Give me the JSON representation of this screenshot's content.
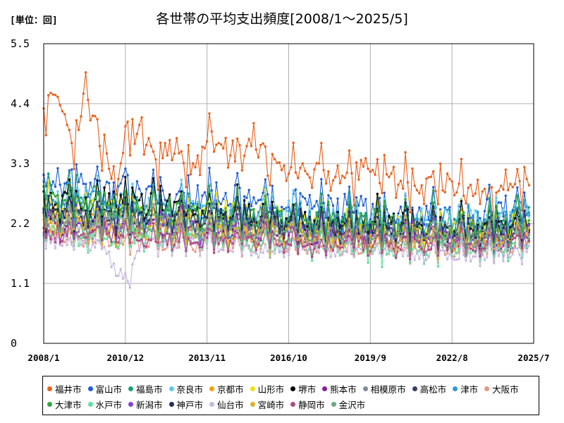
{
  "header": {
    "unit": "[単位：回]",
    "title": "各世帯の平均支出頻度[2008/1～2025/5]"
  },
  "chart_data": {
    "type": "line",
    "title": "各世帯の平均支出頻度[2008/1～2025/5]",
    "unit": "[単位：回]",
    "xlabel": "",
    "ylabel": "",
    "x_range": [
      "2008/1",
      "2025/7"
    ],
    "x_ticks": [
      "2008/1",
      "2010/12",
      "2013/11",
      "2016/10",
      "2019/9",
      "2022/8",
      "2025/7"
    ],
    "ylim": [
      0,
      5.5
    ],
    "y_ticks": [
      0,
      1.1,
      2.2,
      3.3,
      4.4,
      5.5
    ],
    "grid": true,
    "legend_position": "bottom",
    "series": [
      {
        "name": "福井市",
        "color": "#e8601c",
        "anchors": [
          [
            2008.0,
            4.1
          ],
          [
            2008.5,
            4.6
          ],
          [
            2009.0,
            3.4
          ],
          [
            2009.5,
            4.7
          ],
          [
            2010.0,
            3.6
          ],
          [
            2010.5,
            3.0
          ],
          [
            2011.0,
            3.7
          ],
          [
            2011.5,
            3.9
          ],
          [
            2012.0,
            3.2
          ],
          [
            2012.5,
            3.7
          ],
          [
            2013.0,
            3.3
          ],
          [
            2013.5,
            3.4
          ],
          [
            2014.0,
            3.7
          ],
          [
            2014.5,
            3.6
          ],
          [
            2015.0,
            3.3
          ],
          [
            2015.5,
            3.8
          ],
          [
            2016.0,
            3.1
          ],
          [
            2016.5,
            3.3
          ],
          [
            2017.0,
            3.1
          ],
          [
            2017.5,
            3.2
          ],
          [
            2018.0,
            3.0
          ],
          [
            2018.5,
            3.1
          ],
          [
            2019.0,
            2.9
          ],
          [
            2019.5,
            3.4
          ],
          [
            2020.0,
            3.0
          ],
          [
            2020.5,
            3.0
          ],
          [
            2021.0,
            2.9
          ],
          [
            2021.5,
            3.0
          ],
          [
            2022.0,
            2.8
          ],
          [
            2022.5,
            3.0
          ],
          [
            2023.0,
            2.7
          ],
          [
            2023.5,
            2.8
          ],
          [
            2024.0,
            2.6
          ],
          [
            2024.5,
            3.0
          ],
          [
            2025.0,
            2.8
          ],
          [
            2025.33,
            2.8
          ]
        ],
        "amp": 0.55,
        "noise": 0.25
      },
      {
        "name": "富山市",
        "color": "#1f5fd6",
        "anchors": [
          [
            2008.0,
            3.0
          ],
          [
            2009.0,
            2.9
          ],
          [
            2010.0,
            2.8
          ],
          [
            2011.0,
            2.8
          ],
          [
            2012.0,
            2.7
          ],
          [
            2013.0,
            2.7
          ],
          [
            2014.0,
            2.7
          ],
          [
            2015.0,
            2.6
          ],
          [
            2016.0,
            2.6
          ],
          [
            2017.0,
            2.5
          ],
          [
            2018.0,
            2.5
          ],
          [
            2019.0,
            2.5
          ],
          [
            2020.0,
            2.4
          ],
          [
            2021.0,
            2.4
          ],
          [
            2022.0,
            2.4
          ],
          [
            2023.0,
            2.3
          ],
          [
            2024.0,
            2.4
          ],
          [
            2025.33,
            2.5
          ]
        ],
        "amp": 0.55,
        "noise": 0.2
      },
      {
        "name": "福島市",
        "color": "#18a07a",
        "anchors": [
          [
            2008.0,
            2.8
          ],
          [
            2010.0,
            2.6
          ],
          [
            2012.0,
            2.4
          ],
          [
            2014.0,
            2.4
          ],
          [
            2016.0,
            2.3
          ],
          [
            2018.0,
            2.2
          ],
          [
            2020.0,
            2.2
          ],
          [
            2022.0,
            2.2
          ],
          [
            2024.0,
            2.1
          ],
          [
            2025.33,
            2.3
          ]
        ],
        "amp": 0.6,
        "noise": 0.18
      },
      {
        "name": "奈良市",
        "color": "#5ec8f2",
        "anchors": [
          [
            2008.0,
            2.7
          ],
          [
            2010.0,
            2.6
          ],
          [
            2012.0,
            2.5
          ],
          [
            2014.0,
            2.4
          ],
          [
            2016.0,
            2.5
          ],
          [
            2018.0,
            2.3
          ],
          [
            2020.0,
            2.3
          ],
          [
            2022.0,
            2.3
          ],
          [
            2024.0,
            2.3
          ],
          [
            2025.33,
            2.4
          ]
        ],
        "amp": 0.5,
        "noise": 0.2
      },
      {
        "name": "京都市",
        "color": "#f2a600",
        "anchors": [
          [
            2008.0,
            2.3
          ],
          [
            2010.0,
            2.2
          ],
          [
            2012.0,
            2.2
          ],
          [
            2014.0,
            2.1
          ],
          [
            2016.0,
            2.1
          ],
          [
            2018.0,
            2.0
          ],
          [
            2020.0,
            2.0
          ],
          [
            2022.0,
            2.0
          ],
          [
            2024.0,
            2.0
          ],
          [
            2025.33,
            2.1
          ]
        ],
        "amp": 0.45,
        "noise": 0.2
      },
      {
        "name": "山形市",
        "color": "#f0e014",
        "anchors": [
          [
            2008.0,
            2.6
          ],
          [
            2010.0,
            2.5
          ],
          [
            2012.0,
            2.4
          ],
          [
            2014.0,
            2.4
          ],
          [
            2016.0,
            2.3
          ],
          [
            2018.0,
            2.2
          ],
          [
            2020.0,
            2.2
          ],
          [
            2022.0,
            2.1
          ],
          [
            2024.0,
            2.1
          ],
          [
            2025.33,
            2.2
          ]
        ],
        "amp": 0.55,
        "noise": 0.2
      },
      {
        "name": "堺市",
        "color": "#000000",
        "anchors": [
          [
            2008.0,
            2.6
          ],
          [
            2010.0,
            2.6
          ],
          [
            2012.0,
            2.5
          ],
          [
            2014.0,
            2.4
          ],
          [
            2016.0,
            2.3
          ],
          [
            2018.0,
            2.2
          ],
          [
            2020.0,
            2.2
          ],
          [
            2022.0,
            2.1
          ],
          [
            2024.0,
            2.1
          ],
          [
            2025.33,
            2.2
          ]
        ],
        "amp": 0.55,
        "noise": 0.18
      },
      {
        "name": "熊本市",
        "color": "#8b1aa0",
        "anchors": [
          [
            2008.0,
            2.2
          ],
          [
            2010.0,
            2.1
          ],
          [
            2012.0,
            2.1
          ],
          [
            2014.0,
            2.0
          ],
          [
            2016.0,
            2.0
          ],
          [
            2018.0,
            1.9
          ],
          [
            2020.0,
            1.9
          ],
          [
            2022.0,
            1.9
          ],
          [
            2024.0,
            1.8
          ],
          [
            2025.33,
            1.9
          ]
        ],
        "amp": 0.35,
        "noise": 0.15
      },
      {
        "name": "相模原市",
        "color": "#7f8a96",
        "anchors": [
          [
            2008.0,
            2.1
          ],
          [
            2010.0,
            2.0
          ],
          [
            2012.0,
            2.0
          ],
          [
            2014.0,
            2.0
          ],
          [
            2016.0,
            1.9
          ],
          [
            2018.0,
            1.9
          ],
          [
            2020.0,
            1.9
          ],
          [
            2022.0,
            1.8
          ],
          [
            2024.0,
            1.8
          ],
          [
            2025.33,
            1.9
          ]
        ],
        "amp": 0.3,
        "noise": 0.15
      },
      {
        "name": "高松市",
        "color": "#3a3a6e",
        "anchors": [
          [
            2008.0,
            2.4
          ],
          [
            2010.0,
            2.3
          ],
          [
            2012.0,
            2.3
          ],
          [
            2014.0,
            2.2
          ],
          [
            2016.0,
            2.2
          ],
          [
            2018.0,
            2.1
          ],
          [
            2020.0,
            2.1
          ],
          [
            2022.0,
            2.0
          ],
          [
            2024.0,
            2.0
          ],
          [
            2025.33,
            2.1
          ]
        ],
        "amp": 0.45,
        "noise": 0.15
      },
      {
        "name": "津市",
        "color": "#2e9ad0",
        "anchors": [
          [
            2008.0,
            2.5
          ],
          [
            2010.0,
            2.4
          ],
          [
            2012.0,
            2.4
          ],
          [
            2014.0,
            2.3
          ],
          [
            2016.0,
            2.3
          ],
          [
            2018.0,
            2.2
          ],
          [
            2020.0,
            2.2
          ],
          [
            2022.0,
            2.1
          ],
          [
            2024.0,
            2.2
          ],
          [
            2025.33,
            2.3
          ]
        ],
        "amp": 0.5,
        "noise": 0.18
      },
      {
        "name": "大阪市",
        "color": "#e59a80",
        "anchors": [
          [
            2008.0,
            1.9
          ],
          [
            2010.0,
            1.9
          ],
          [
            2012.0,
            1.8
          ],
          [
            2014.0,
            1.8
          ],
          [
            2016.0,
            1.8
          ],
          [
            2018.0,
            1.7
          ],
          [
            2020.0,
            1.7
          ],
          [
            2022.0,
            1.7
          ],
          [
            2024.0,
            1.7
          ],
          [
            2025.33,
            1.8
          ]
        ],
        "amp": 0.25,
        "noise": 0.12
      },
      {
        "name": "大津市",
        "color": "#2fa83a",
        "anchors": [
          [
            2008.0,
            2.6
          ],
          [
            2010.0,
            2.5
          ],
          [
            2012.0,
            2.4
          ],
          [
            2014.0,
            2.3
          ],
          [
            2016.0,
            2.3
          ],
          [
            2018.0,
            2.2
          ],
          [
            2020.0,
            2.2
          ],
          [
            2022.0,
            2.1
          ],
          [
            2024.0,
            2.1
          ],
          [
            2025.33,
            2.2
          ]
        ],
        "amp": 0.55,
        "noise": 0.2
      },
      {
        "name": "水戸市",
        "color": "#5ee0a0",
        "anchors": [
          [
            2008.0,
            2.0
          ],
          [
            2010.0,
            1.9
          ],
          [
            2012.0,
            1.9
          ],
          [
            2014.0,
            1.9
          ],
          [
            2016.0,
            1.8
          ],
          [
            2018.0,
            1.8
          ],
          [
            2020.0,
            1.7
          ],
          [
            2022.0,
            1.7
          ],
          [
            2024.0,
            1.7
          ],
          [
            2025.33,
            1.8
          ]
        ],
        "amp": 0.35,
        "noise": 0.15
      },
      {
        "name": "新潟市",
        "color": "#8a3ed6",
        "anchors": [
          [
            2008.0,
            2.3
          ],
          [
            2010.0,
            2.2
          ],
          [
            2012.0,
            2.2
          ],
          [
            2014.0,
            2.1
          ],
          [
            2016.0,
            2.1
          ],
          [
            2018.0,
            2.0
          ],
          [
            2020.0,
            2.0
          ],
          [
            2022.0,
            2.0
          ],
          [
            2024.0,
            1.9
          ],
          [
            2025.33,
            2.0
          ]
        ],
        "amp": 0.4,
        "noise": 0.15
      },
      {
        "name": "神戸市",
        "color": "#203050",
        "anchors": [
          [
            2008.0,
            2.4
          ],
          [
            2010.0,
            2.3
          ],
          [
            2012.0,
            2.3
          ],
          [
            2014.0,
            2.3
          ],
          [
            2016.0,
            2.2
          ],
          [
            2018.0,
            2.1
          ],
          [
            2020.0,
            2.1
          ],
          [
            2022.0,
            2.1
          ],
          [
            2024.0,
            2.0
          ],
          [
            2025.33,
            2.1
          ]
        ],
        "amp": 0.5,
        "noise": 0.15
      },
      {
        "name": "仙台市",
        "color": "#c8b8e0",
        "anchors": [
          [
            2008.0,
            1.9
          ],
          [
            2010.0,
            1.8
          ],
          [
            2011.0,
            1.1
          ],
          [
            2011.5,
            1.8
          ],
          [
            2012.0,
            1.8
          ],
          [
            2014.0,
            1.8
          ],
          [
            2016.0,
            1.7
          ],
          [
            2018.0,
            1.7
          ],
          [
            2020.0,
            1.7
          ],
          [
            2022.0,
            1.6
          ],
          [
            2024.0,
            1.6
          ],
          [
            2025.33,
            1.7
          ]
        ],
        "amp": 0.25,
        "noise": 0.12
      },
      {
        "name": "宮崎市",
        "color": "#e0b030",
        "anchors": [
          [
            2008.0,
            2.2
          ],
          [
            2010.0,
            2.1
          ],
          [
            2012.0,
            2.1
          ],
          [
            2014.0,
            2.0
          ],
          [
            2016.0,
            2.0
          ],
          [
            2018.0,
            1.9
          ],
          [
            2020.0,
            1.9
          ],
          [
            2022.0,
            1.9
          ],
          [
            2024.0,
            1.9
          ],
          [
            2025.33,
            2.0
          ]
        ],
        "amp": 0.4,
        "noise": 0.18
      },
      {
        "name": "静岡市",
        "color": "#b04a80",
        "anchors": [
          [
            2008.0,
            2.0
          ],
          [
            2010.0,
            2.0
          ],
          [
            2012.0,
            1.9
          ],
          [
            2014.0,
            1.9
          ],
          [
            2016.0,
            1.9
          ],
          [
            2018.0,
            1.8
          ],
          [
            2020.0,
            1.8
          ],
          [
            2022.0,
            1.8
          ],
          [
            2024.0,
            1.8
          ],
          [
            2025.33,
            1.9
          ]
        ],
        "amp": 0.3,
        "noise": 0.12
      },
      {
        "name": "金沢市",
        "color": "#6aaa80",
        "anchors": [
          [
            2008.0,
            2.3
          ],
          [
            2010.0,
            2.2
          ],
          [
            2012.0,
            2.2
          ],
          [
            2014.0,
            2.1
          ],
          [
            2016.0,
            2.1
          ],
          [
            2018.0,
            2.0
          ],
          [
            2020.0,
            2.0
          ],
          [
            2022.0,
            2.0
          ],
          [
            2024.0,
            1.9
          ],
          [
            2025.33,
            2.0
          ]
        ],
        "amp": 0.4,
        "noise": 0.15
      }
    ]
  }
}
